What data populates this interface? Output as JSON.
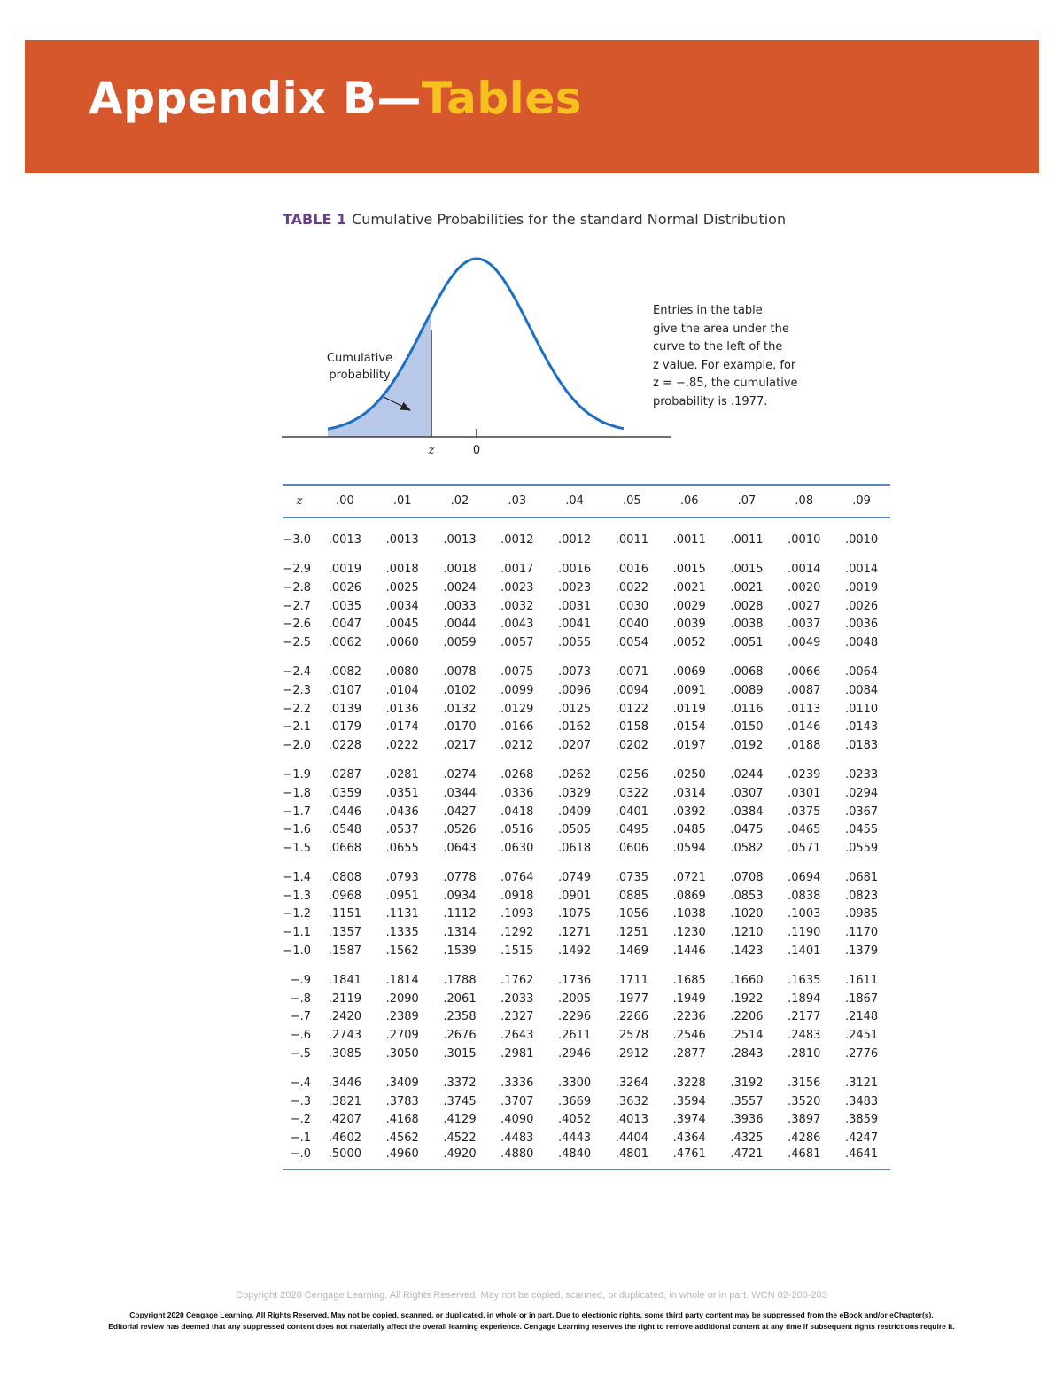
{
  "banner": {
    "title_main": "Appendix B—",
    "title_accent": "Tables",
    "colors": {
      "background": "#d6572b",
      "title": "#ffffff",
      "accent": "#f7c21e"
    }
  },
  "caption": {
    "label": "TABLE 1",
    "text": "Cumulative Probabilities for the standard Normal Distribution"
  },
  "figure": {
    "curve_label_line1": "Cumulative",
    "curve_label_line2": "probability",
    "axis_z_label": "z",
    "axis_zero_label": "0",
    "colors": {
      "curve": "#1c6fc2",
      "shade": "#b8c8e8"
    },
    "note_lines": [
      "Entries in the table",
      "give the area under the",
      "curve to the left of the",
      "z value. For example, for",
      "z = −.85, the cumulative",
      "probability is .1977."
    ]
  },
  "table": {
    "z_header": "z",
    "columns": [
      ".00",
      ".01",
      ".02",
      ".03",
      ".04",
      ".05",
      ".06",
      ".07",
      ".08",
      ".09"
    ],
    "groups": [
      [
        [
          "−3.0",
          ".0013",
          ".0013",
          ".0013",
          ".0012",
          ".0012",
          ".0011",
          ".0011",
          ".0011",
          ".0010",
          ".0010"
        ]
      ],
      [
        [
          "−2.9",
          ".0019",
          ".0018",
          ".0018",
          ".0017",
          ".0016",
          ".0016",
          ".0015",
          ".0015",
          ".0014",
          ".0014"
        ],
        [
          "−2.8",
          ".0026",
          ".0025",
          ".0024",
          ".0023",
          ".0023",
          ".0022",
          ".0021",
          ".0021",
          ".0020",
          ".0019"
        ],
        [
          "−2.7",
          ".0035",
          ".0034",
          ".0033",
          ".0032",
          ".0031",
          ".0030",
          ".0029",
          ".0028",
          ".0027",
          ".0026"
        ],
        [
          "−2.6",
          ".0047",
          ".0045",
          ".0044",
          ".0043",
          ".0041",
          ".0040",
          ".0039",
          ".0038",
          ".0037",
          ".0036"
        ],
        [
          "−2.5",
          ".0062",
          ".0060",
          ".0059",
          ".0057",
          ".0055",
          ".0054",
          ".0052",
          ".0051",
          ".0049",
          ".0048"
        ]
      ],
      [
        [
          "−2.4",
          ".0082",
          ".0080",
          ".0078",
          ".0075",
          ".0073",
          ".0071",
          ".0069",
          ".0068",
          ".0066",
          ".0064"
        ],
        [
          "−2.3",
          ".0107",
          ".0104",
          ".0102",
          ".0099",
          ".0096",
          ".0094",
          ".0091",
          ".0089",
          ".0087",
          ".0084"
        ],
        [
          "−2.2",
          ".0139",
          ".0136",
          ".0132",
          ".0129",
          ".0125",
          ".0122",
          ".0119",
          ".0116",
          ".0113",
          ".0110"
        ],
        [
          "−2.1",
          ".0179",
          ".0174",
          ".0170",
          ".0166",
          ".0162",
          ".0158",
          ".0154",
          ".0150",
          ".0146",
          ".0143"
        ],
        [
          "−2.0",
          ".0228",
          ".0222",
          ".0217",
          ".0212",
          ".0207",
          ".0202",
          ".0197",
          ".0192",
          ".0188",
          ".0183"
        ]
      ],
      [
        [
          "−1.9",
          ".0287",
          ".0281",
          ".0274",
          ".0268",
          ".0262",
          ".0256",
          ".0250",
          ".0244",
          ".0239",
          ".0233"
        ],
        [
          "−1.8",
          ".0359",
          ".0351",
          ".0344",
          ".0336",
          ".0329",
          ".0322",
          ".0314",
          ".0307",
          ".0301",
          ".0294"
        ],
        [
          "−1.7",
          ".0446",
          ".0436",
          ".0427",
          ".0418",
          ".0409",
          ".0401",
          ".0392",
          ".0384",
          ".0375",
          ".0367"
        ],
        [
          "−1.6",
          ".0548",
          ".0537",
          ".0526",
          ".0516",
          ".0505",
          ".0495",
          ".0485",
          ".0475",
          ".0465",
          ".0455"
        ],
        [
          "−1.5",
          ".0668",
          ".0655",
          ".0643",
          ".0630",
          ".0618",
          ".0606",
          ".0594",
          ".0582",
          ".0571",
          ".0559"
        ]
      ],
      [
        [
          "−1.4",
          ".0808",
          ".0793",
          ".0778",
          ".0764",
          ".0749",
          ".0735",
          ".0721",
          ".0708",
          ".0694",
          ".0681"
        ],
        [
          "−1.3",
          ".0968",
          ".0951",
          ".0934",
          ".0918",
          ".0901",
          ".0885",
          ".0869",
          ".0853",
          ".0838",
          ".0823"
        ],
        [
          "−1.2",
          ".1151",
          ".1131",
          ".1112",
          ".1093",
          ".1075",
          ".1056",
          ".1038",
          ".1020",
          ".1003",
          ".0985"
        ],
        [
          "−1.1",
          ".1357",
          ".1335",
          ".1314",
          ".1292",
          ".1271",
          ".1251",
          ".1230",
          ".1210",
          ".1190",
          ".1170"
        ],
        [
          "−1.0",
          ".1587",
          ".1562",
          ".1539",
          ".1515",
          ".1492",
          ".1469",
          ".1446",
          ".1423",
          ".1401",
          ".1379"
        ]
      ],
      [
        [
          "−.9",
          ".1841",
          ".1814",
          ".1788",
          ".1762",
          ".1736",
          ".1711",
          ".1685",
          ".1660",
          ".1635",
          ".1611"
        ],
        [
          "−.8",
          ".2119",
          ".2090",
          ".2061",
          ".2033",
          ".2005",
          ".1977",
          ".1949",
          ".1922",
          ".1894",
          ".1867"
        ],
        [
          "−.7",
          ".2420",
          ".2389",
          ".2358",
          ".2327",
          ".2296",
          ".2266",
          ".2236",
          ".2206",
          ".2177",
          ".2148"
        ],
        [
          "−.6",
          ".2743",
          ".2709",
          ".2676",
          ".2643",
          ".2611",
          ".2578",
          ".2546",
          ".2514",
          ".2483",
          ".2451"
        ],
        [
          "−.5",
          ".3085",
          ".3050",
          ".3015",
          ".2981",
          ".2946",
          ".2912",
          ".2877",
          ".2843",
          ".2810",
          ".2776"
        ]
      ],
      [
        [
          "−.4",
          ".3446",
          ".3409",
          ".3372",
          ".3336",
          ".3300",
          ".3264",
          ".3228",
          ".3192",
          ".3156",
          ".3121"
        ],
        [
          "−.3",
          ".3821",
          ".3783",
          ".3745",
          ".3707",
          ".3669",
          ".3632",
          ".3594",
          ".3557",
          ".3520",
          ".3483"
        ],
        [
          "−.2",
          ".4207",
          ".4168",
          ".4129",
          ".4090",
          ".4052",
          ".4013",
          ".3974",
          ".3936",
          ".3897",
          ".3859"
        ],
        [
          "−.1",
          ".4602",
          ".4562",
          ".4522",
          ".4483",
          ".4443",
          ".4404",
          ".4364",
          ".4325",
          ".4286",
          ".4247"
        ],
        [
          "−.0",
          ".5000",
          ".4960",
          ".4920",
          ".4880",
          ".4840",
          ".4801",
          ".4761",
          ".4721",
          ".4681",
          ".4641"
        ]
      ]
    ]
  },
  "footer": {
    "copyright_line": "Copyright 2020 Cengage Learning. All Rights Reserved. May not be copied, scanned, or duplicated, in whole or in part.  WCN 02-200-203",
    "fine_print_line1": "Copyright 2020 Cengage Learning. All Rights Reserved. May not be copied, scanned, or duplicated, in whole or in part. Due to electronic rights, some third party content may be suppressed from the eBook and/or eChapter(s).",
    "fine_print_line2": "Editorial review has deemed that any suppressed content does not materially affect the overall learning experience. Cengage Learning reserves the right to remove additional content at any time if subsequent rights restrictions require it."
  }
}
